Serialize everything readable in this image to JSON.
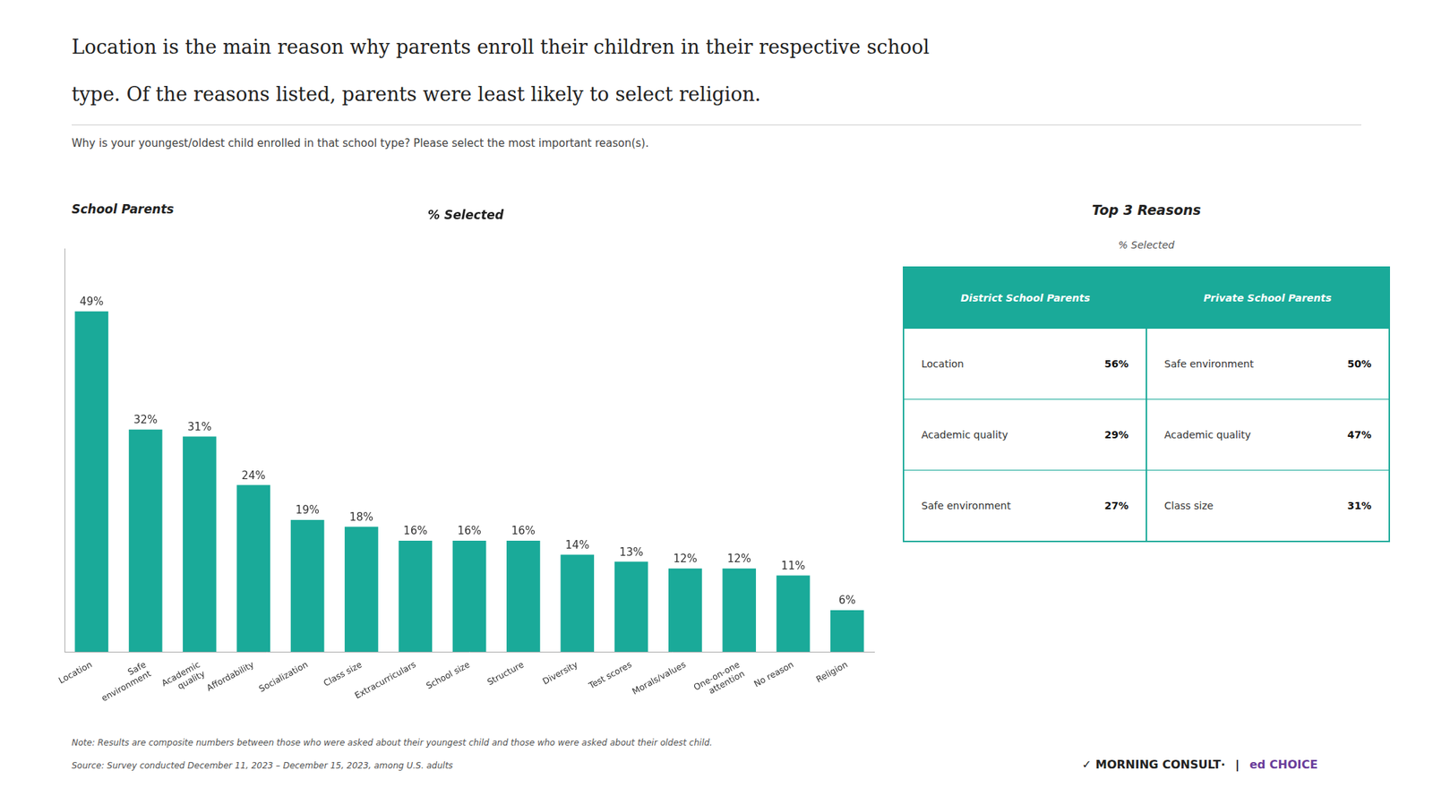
{
  "chart_data": {
    "type": "bar",
    "title": [
      "Location is the main reason why parents enroll their children in their respective school",
      "type. Of the reasons listed, parents were least likely to select religion."
    ],
    "subtitle": "Why is your youngest/oldest child enrolled in that school type? Please select the most important reason(s).",
    "annotations": [
      "School Parents"
    ],
    "ylabel": "% Selected",
    "categories": [
      "Location",
      "Safe\nenvironment",
      "Academic\nquality",
      "Affordability",
      "Socialization",
      "Class size",
      "Extracurriculars",
      "School size",
      "Structure",
      "Diversity",
      "Test scores",
      "Morals/values",
      "One-on-one\nattention",
      "No reason",
      "Religion"
    ],
    "values": [
      49,
      32,
      31,
      24,
      19,
      18,
      16,
      16,
      16,
      14,
      13,
      12,
      12,
      11,
      6
    ],
    "value_labels": [
      "49%",
      "32%",
      "31%",
      "24%",
      "19%",
      "18%",
      "16%",
      "16%",
      "16%",
      "14%",
      "13%",
      "12%",
      "12%",
      "11%",
      "6%"
    ],
    "data_labels": true,
    "color": "#1aaa99",
    "ylim": [
      0,
      58
    ],
    "tick_labels": "x",
    "grid": false,
    "table": {
      "title": "Top 3 Reasons",
      "subtitle": "% Selected",
      "color": "#1aaa99",
      "columns": [
        {
          "header": "District School Parents",
          "rows": [
            {
              "label": "Location",
              "value": 56,
              "value_label": "56%"
            },
            {
              "label": "Academic quality",
              "value": 29,
              "value_label": "29%"
            },
            {
              "label": "Safe environment",
              "value": 27,
              "value_label": "27%"
            }
          ]
        },
        {
          "header": "Private School Parents",
          "rows": [
            {
              "label": "Safe environment",
              "value": 50,
              "value_label": "50%"
            },
            {
              "label": "Academic quality",
              "value": 47,
              "value_label": "47%"
            },
            {
              "label": "Class size",
              "value": 31,
              "value_label": "31%"
            }
          ]
        }
      ]
    },
    "note": "Note: Results are composite numbers between those who were asked about their youngest child and those who were asked about their oldest child.",
    "source": "Source: Survey conducted December 11, 2023 – December 15, 2023, among U.S. adults",
    "logos": [
      {
        "text": "✓ MORNING CONSULT·"
      },
      {
        "text": "|"
      },
      {
        "text": "ed CHOICE",
        "color": "#6a3d9a"
      }
    ]
  }
}
